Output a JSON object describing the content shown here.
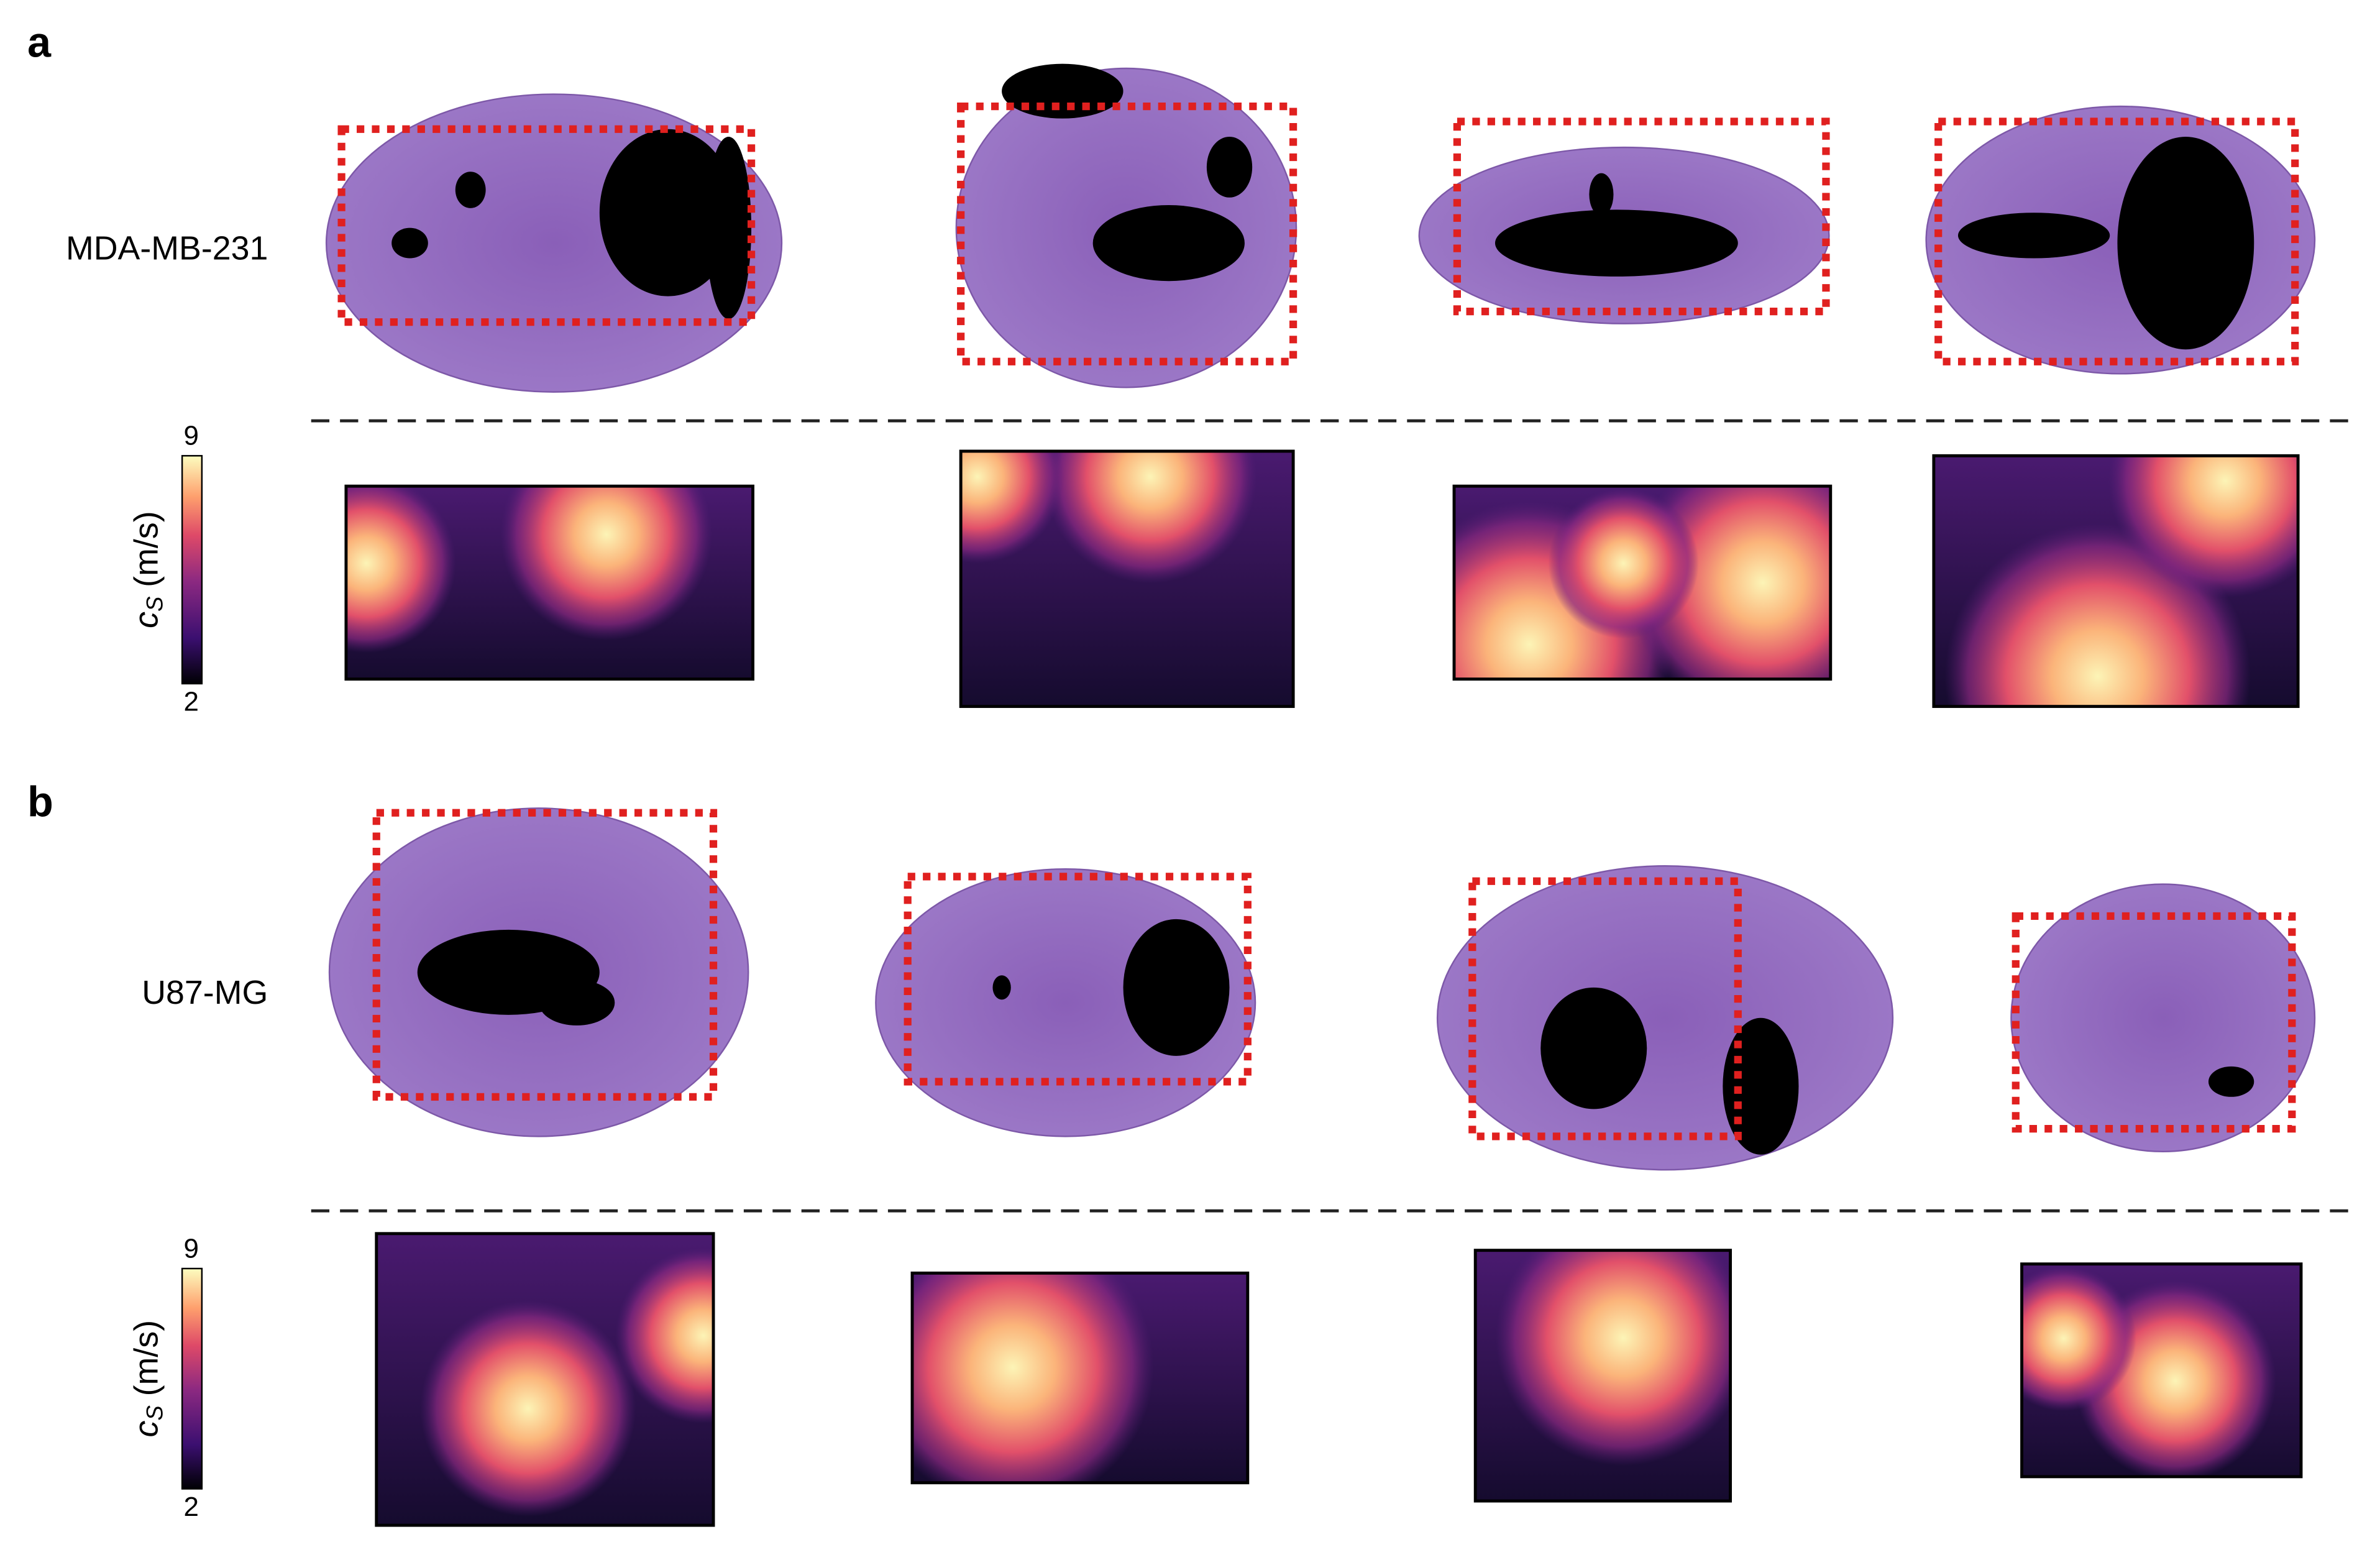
{
  "panels": [
    {
      "label": "a",
      "row_label": "MDA-MB-231",
      "colorbar": {
        "max": 9,
        "min": 2,
        "symbol": "c",
        "subscript": "S",
        "unit": "(m/s)"
      }
    },
    {
      "label": "b",
      "row_label": "U87-MG",
      "colorbar": {
        "max": 9,
        "min": 2,
        "symbol": "c",
        "subscript": "S",
        "unit": "(m/s)"
      }
    }
  ]
}
